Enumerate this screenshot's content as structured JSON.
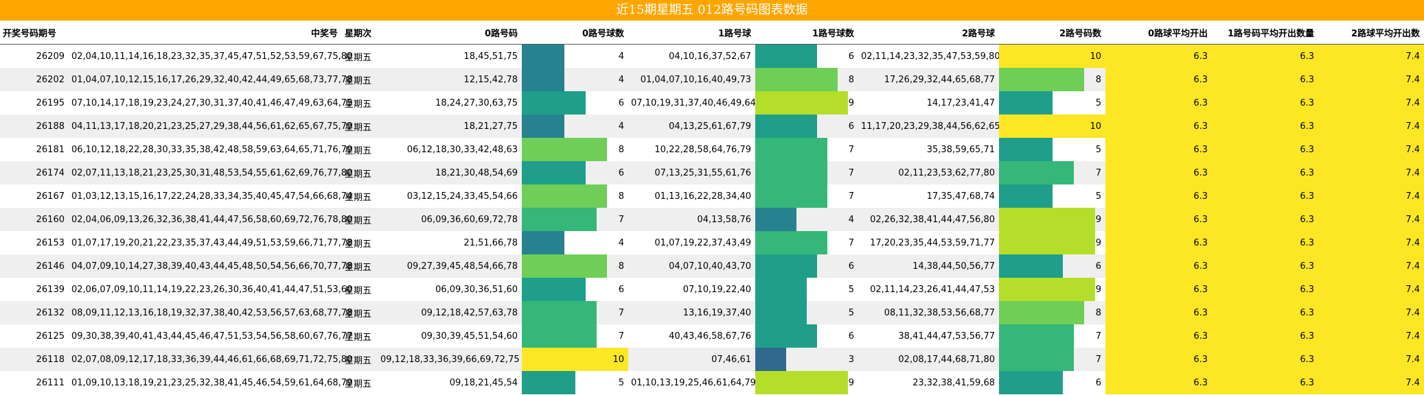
{
  "title": "近15期星期五 012路号码图表数据",
  "columns": [
    "开奖号码期号",
    "中奖号",
    "星期次",
    "0路号码",
    "0路号球数",
    "1路号球",
    "1路号球数",
    "2路号球",
    "2路号码数",
    "0路球平均开出",
    "1路号码平均开出数量",
    "2路球平均开出数"
  ],
  "colors": {
    "title_bg": "#FFA500",
    "avg_bg": "#FDE725",
    "row_alt": "#efefef",
    "ball_count_max": 10
  },
  "chart_data": {
    "type": "table",
    "title": "近15期星期五 012路号码图表数据",
    "rows": [
      {
        "issue": "26209",
        "numbers": "02,04,10,11,14,16,18,23,32,35,37,45,47,51,52,53,59,67,75,80",
        "weekday": "星期五",
        "r0": "18,45,51,75",
        "r0c": 4,
        "r1": "04,10,16,37,52,67",
        "r1c": 6,
        "r2": "02,11,14,23,32,35,47,53,59,80",
        "r2c": 10,
        "avg0": "6.3",
        "avg1": "6.3",
        "avg2": "7.4"
      },
      {
        "issue": "26202",
        "numbers": "01,04,07,10,12,15,16,17,26,29,32,40,42,44,49,65,68,73,77,78",
        "weekday": "星期五",
        "r0": "12,15,42,78",
        "r0c": 4,
        "r1": "01,04,07,10,16,40,49,73",
        "r1c": 8,
        "r2": "17,26,29,32,44,65,68,77",
        "r2c": 8,
        "avg0": "6.3",
        "avg1": "6.3",
        "avg2": "7.4"
      },
      {
        "issue": "26195",
        "numbers": "07,10,14,17,18,19,23,24,27,30,31,37,40,41,46,47,49,63,64,75",
        "weekday": "星期五",
        "r0": "18,24,27,30,63,75",
        "r0c": 6,
        "r1": "07,10,19,31,37,40,46,49,64",
        "r1c": 9,
        "r2": "14,17,23,41,47",
        "r2c": 5,
        "avg0": "6.3",
        "avg1": "6.3",
        "avg2": "7.4"
      },
      {
        "issue": "26188",
        "numbers": "04,11,13,17,18,20,21,23,25,27,29,38,44,56,61,62,65,67,75,79",
        "weekday": "星期五",
        "r0": "18,21,27,75",
        "r0c": 4,
        "r1": "04,13,25,61,67,79",
        "r1c": 6,
        "r2": "11,17,20,23,29,38,44,56,62,65",
        "r2c": 10,
        "avg0": "6.3",
        "avg1": "6.3",
        "avg2": "7.4"
      },
      {
        "issue": "26181",
        "numbers": "06,10,12,18,22,28,30,33,35,38,42,48,58,59,63,64,65,71,76,79",
        "weekday": "星期五",
        "r0": "06,12,18,30,33,42,48,63",
        "r0c": 8,
        "r1": "10,22,28,58,64,76,79",
        "r1c": 7,
        "r2": "35,38,59,65,71",
        "r2c": 5,
        "avg0": "6.3",
        "avg1": "6.3",
        "avg2": "7.4"
      },
      {
        "issue": "26174",
        "numbers": "02,07,11,13,18,21,23,25,30,31,48,53,54,55,61,62,69,76,77,80",
        "weekday": "星期五",
        "r0": "18,21,30,48,54,69",
        "r0c": 6,
        "r1": "07,13,25,31,55,61,76",
        "r1c": 7,
        "r2": "02,11,23,53,62,77,80",
        "r2c": 7,
        "avg0": "6.3",
        "avg1": "6.3",
        "avg2": "7.4"
      },
      {
        "issue": "26167",
        "numbers": "01,03,12,13,15,16,17,22,24,28,33,34,35,40,45,47,54,66,68,74",
        "weekday": "星期五",
        "r0": "03,12,15,24,33,45,54,66",
        "r0c": 8,
        "r1": "01,13,16,22,28,34,40",
        "r1c": 7,
        "r2": "17,35,47,68,74",
        "r2c": 5,
        "avg0": "6.3",
        "avg1": "6.3",
        "avg2": "7.4"
      },
      {
        "issue": "26160",
        "numbers": "02,04,06,09,13,26,32,36,38,41,44,47,56,58,60,69,72,76,78,80",
        "weekday": "星期五",
        "r0": "06,09,36,60,69,72,78",
        "r0c": 7,
        "r1": "04,13,58,76",
        "r1c": 4,
        "r2": "02,26,32,38,41,44,47,56,80",
        "r2c": 9,
        "avg0": "6.3",
        "avg1": "6.3",
        "avg2": "7.4"
      },
      {
        "issue": "26153",
        "numbers": "01,07,17,19,20,21,22,23,35,37,43,44,49,51,53,59,66,71,77,78",
        "weekday": "星期五",
        "r0": "21,51,66,78",
        "r0c": 4,
        "r1": "01,07,19,22,37,43,49",
        "r1c": 7,
        "r2": "17,20,23,35,44,53,59,71,77",
        "r2c": 9,
        "avg0": "6.3",
        "avg1": "6.3",
        "avg2": "7.4"
      },
      {
        "issue": "26146",
        "numbers": "04,07,09,10,14,27,38,39,40,43,44,45,48,50,54,56,66,70,77,78",
        "weekday": "星期五",
        "r0": "09,27,39,45,48,54,66,78",
        "r0c": 8,
        "r1": "04,07,10,40,43,70",
        "r1c": 6,
        "r2": "14,38,44,50,56,77",
        "r2c": 6,
        "avg0": "6.3",
        "avg1": "6.3",
        "avg2": "7.4"
      },
      {
        "issue": "26139",
        "numbers": "02,06,07,09,10,11,14,19,22,23,26,30,36,40,41,44,47,51,53,60",
        "weekday": "星期五",
        "r0": "06,09,30,36,51,60",
        "r0c": 6,
        "r1": "07,10,19,22,40",
        "r1c": 5,
        "r2": "02,11,14,23,26,41,44,47,53",
        "r2c": 9,
        "avg0": "6.3",
        "avg1": "6.3",
        "avg2": "7.4"
      },
      {
        "issue": "26132",
        "numbers": "08,09,11,12,13,16,18,19,32,37,38,40,42,53,56,57,63,68,77,78",
        "weekday": "星期五",
        "r0": "09,12,18,42,57,63,78",
        "r0c": 7,
        "r1": "13,16,19,37,40",
        "r1c": 5,
        "r2": "08,11,32,38,53,56,68,77",
        "r2c": 8,
        "avg0": "6.3",
        "avg1": "6.3",
        "avg2": "7.4"
      },
      {
        "issue": "26125",
        "numbers": "09,30,38,39,40,41,43,44,45,46,47,51,53,54,56,58,60,67,76,77",
        "weekday": "星期五",
        "r0": "09,30,39,45,51,54,60",
        "r0c": 7,
        "r1": "40,43,46,58,67,76",
        "r1c": 6,
        "r2": "38,41,44,47,53,56,77",
        "r2c": 7,
        "avg0": "6.3",
        "avg1": "6.3",
        "avg2": "7.4"
      },
      {
        "issue": "26118",
        "numbers": "02,07,08,09,12,17,18,33,36,39,44,46,61,66,68,69,71,72,75,80",
        "weekday": "星期五",
        "r0": "09,12,18,33,36,39,66,69,72,75",
        "r0c": 10,
        "r1": "07,46,61",
        "r1c": 3,
        "r2": "02,08,17,44,68,71,80",
        "r2c": 7,
        "avg0": "6.3",
        "avg1": "6.3",
        "avg2": "7.4"
      },
      {
        "issue": "26111",
        "numbers": "01,09,10,13,18,19,21,23,25,32,38,41,45,46,54,59,61,64,68,79",
        "weekday": "星期五",
        "r0": "09,18,21,45,54",
        "r0c": 5,
        "r1": "01,10,13,19,25,46,61,64,79",
        "r1c": 9,
        "r2": "23,32,38,41,59,68",
        "r2c": 6,
        "avg0": "6.3",
        "avg1": "6.3",
        "avg2": "7.4"
      }
    ]
  }
}
